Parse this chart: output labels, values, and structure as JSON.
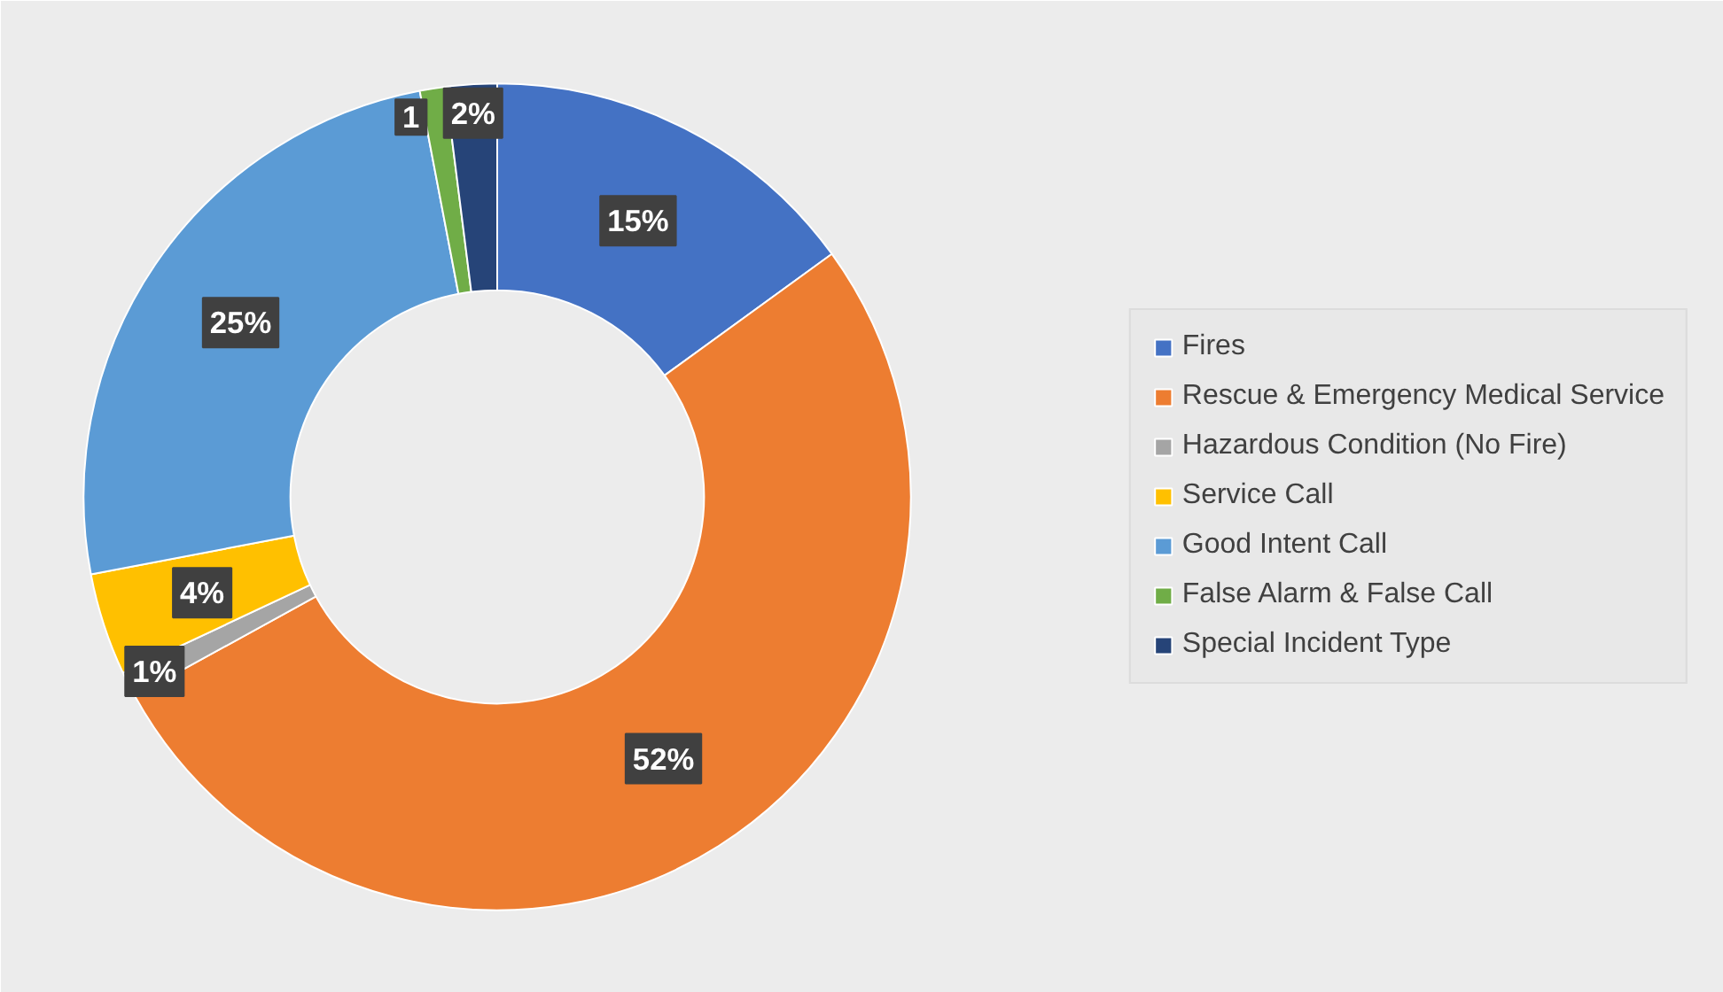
{
  "chart_data": {
    "type": "donut",
    "categories": [
      "Fires",
      "Rescue & Emergency Medical Service",
      "Hazardous Condition (No Fire)",
      "Service Call",
      "Good Intent Call",
      "False Alarm & False Call",
      "Special Incident Type"
    ],
    "values": [
      15,
      52,
      1,
      4,
      25,
      1,
      2
    ],
    "colors": [
      "#4472c4",
      "#ed7d31",
      "#a5a5a5",
      "#ffc000",
      "#5b9bd5",
      "#70ad47",
      "#264478"
    ],
    "value_labels": [
      "15%",
      "52%",
      "1%",
      "4%",
      "25%",
      "1",
      "2%"
    ],
    "legend": "right"
  }
}
